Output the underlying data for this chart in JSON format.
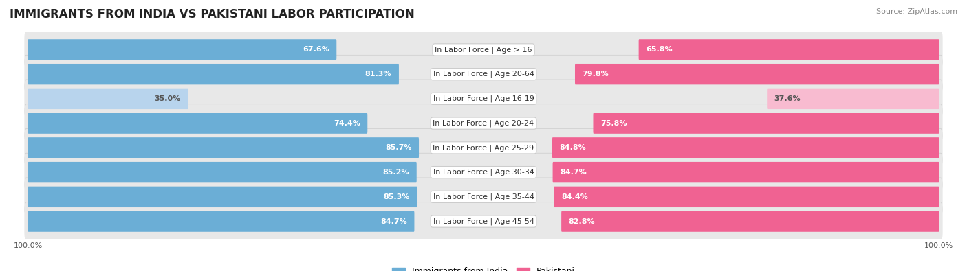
{
  "title": "IMMIGRANTS FROM INDIA VS PAKISTANI LABOR PARTICIPATION",
  "source": "Source: ZipAtlas.com",
  "categories": [
    "In Labor Force | Age > 16",
    "In Labor Force | Age 20-64",
    "In Labor Force | Age 16-19",
    "In Labor Force | Age 20-24",
    "In Labor Force | Age 25-29",
    "In Labor Force | Age 30-34",
    "In Labor Force | Age 35-44",
    "In Labor Force | Age 45-54"
  ],
  "india_values": [
    67.6,
    81.3,
    35.0,
    74.4,
    85.7,
    85.2,
    85.3,
    84.7
  ],
  "pakistan_values": [
    65.8,
    79.8,
    37.6,
    75.8,
    84.8,
    84.7,
    84.4,
    82.8
  ],
  "india_color": "#6baed6",
  "india_color_light": "#b8d4ed",
  "pakistan_color": "#f06292",
  "pakistan_color_light": "#f8bbd0",
  "row_bg_color": "#eeeeee",
  "max_value": 100.0,
  "legend_india": "Immigrants from India",
  "legend_pakistan": "Pakistani",
  "title_fontsize": 12,
  "label_fontsize": 8,
  "value_fontsize": 8,
  "axis_label_fontsize": 8
}
